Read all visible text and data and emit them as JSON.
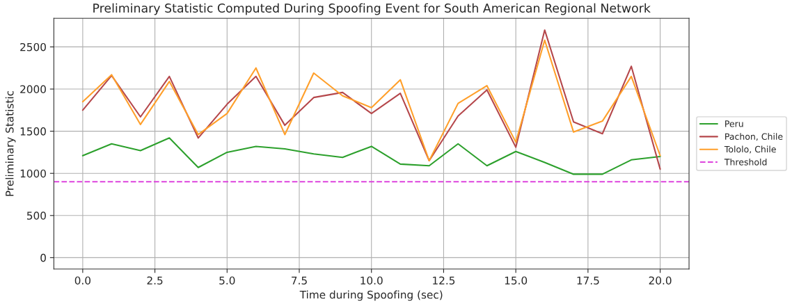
{
  "chart_data": {
    "type": "line",
    "title": "Preliminary Statistic Computed During Spoofing Event for South American Regional Network",
    "xlabel": "Time during Spoofing (sec)",
    "ylabel": "Preliminary Statistic",
    "x": [
      0,
      1,
      2,
      3,
      4,
      5,
      6,
      7,
      8,
      9,
      10,
      11,
      12,
      13,
      14,
      15,
      16,
      17,
      18,
      19,
      20
    ],
    "series": [
      {
        "name": "Peru",
        "color": "#2ca02c",
        "values": [
          1210,
          1350,
          1270,
          1420,
          1070,
          1250,
          1320,
          1290,
          1230,
          1190,
          1320,
          1110,
          1090,
          1350,
          1090,
          1260,
          1130,
          990,
          990,
          1160,
          1200
        ]
      },
      {
        "name": "Pachon, Chile",
        "color": "#b5474b",
        "values": [
          1750,
          2160,
          1670,
          2150,
          1420,
          1820,
          2150,
          1570,
          1900,
          1960,
          1710,
          1950,
          1150,
          1680,
          1990,
          1310,
          2700,
          1610,
          1470,
          2270,
          1050
        ]
      },
      {
        "name": "Tololo, Chile",
        "color": "#ff9f2a",
        "values": [
          1850,
          2170,
          1580,
          2090,
          1460,
          1710,
          2250,
          1460,
          2190,
          1920,
          1780,
          2110,
          1150,
          1830,
          2040,
          1370,
          2580,
          1490,
          1620,
          2150,
          1210
        ]
      }
    ],
    "ref_lines": [
      {
        "axis": "y",
        "value": 900,
        "label": "Threshold",
        "color": "#dd44dd",
        "line_style": "dashed"
      }
    ],
    "xlim": [
      -1,
      21
    ],
    "ylim": [
      -135,
      2840
    ],
    "xticks": [
      {
        "value": 0,
        "label": "0.0"
      },
      {
        "value": 2.5,
        "label": "2.5"
      },
      {
        "value": 5,
        "label": "5.0"
      },
      {
        "value": 7.5,
        "label": "7.5"
      },
      {
        "value": 10,
        "label": "10.0"
      },
      {
        "value": 12.5,
        "label": "12.5"
      },
      {
        "value": 15,
        "label": "15.0"
      },
      {
        "value": 17.5,
        "label": "17.5"
      },
      {
        "value": 20,
        "label": "20.0"
      }
    ],
    "yticks": [
      0,
      500,
      1000,
      1500,
      2000,
      2500
    ],
    "grid": true,
    "legend": "right",
    "line_style": "solid",
    "marker": "none"
  }
}
